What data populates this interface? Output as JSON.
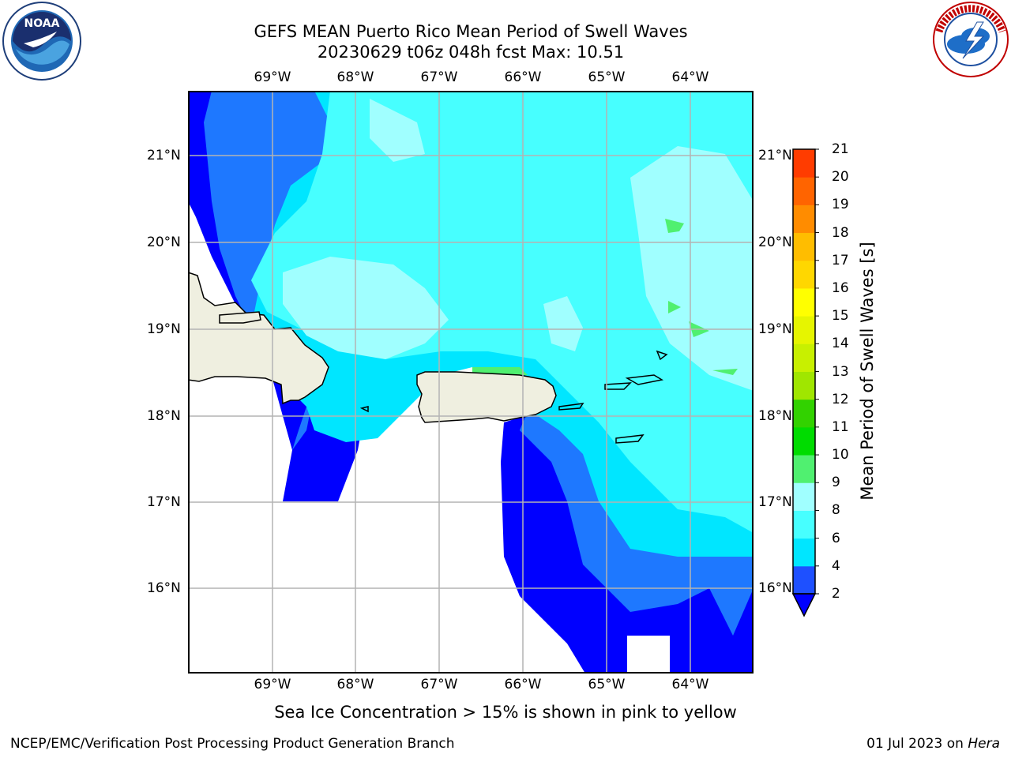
{
  "title_line1": "GEFS MEAN Puerto Rico Mean Period of Swell Waves",
  "title_line2": "20230629 t06z 048h fcst   Max: 10.51",
  "lon_ticks": [
    "69°W",
    "68°W",
    "67°W",
    "66°W",
    "65°W",
    "64°W"
  ],
  "lat_ticks": [
    "21°N",
    "20°N",
    "19°N",
    "18°N",
    "17°N",
    "16°N"
  ],
  "colorbar": {
    "label": "Mean Period of Swell Waves [s]",
    "ticks": [
      "2",
      "4",
      "6",
      "8",
      "9",
      "10",
      "11",
      "12",
      "13",
      "14",
      "15",
      "16",
      "17",
      "18",
      "19",
      "20",
      "21"
    ],
    "colors": [
      "#1e50ff",
      "#00e6ff",
      "#47ffff",
      "#a0ffff",
      "#50f070",
      "#00dc00",
      "#32d200",
      "#a0e600",
      "#c8f000",
      "#e6f500",
      "#ffff00",
      "#ffd700",
      "#ffbd00",
      "#ff8c00",
      "#ff6400",
      "#ff3c00",
      "#ff0000"
    ],
    "underflow_color": "#0000ff"
  },
  "note": "Sea Ice Concentration > 15% is shown in pink to yellow",
  "footer_left": "NCEP/EMC/Verification Post Processing Product Generation Branch",
  "footer_date": "01 Jul 2023 on ",
  "footer_host": "Hera",
  "colors": {
    "land": "#efefe0",
    "grid": "#b4b4b4",
    "very_low": "#0000ff",
    "low": "#1e78ff"
  }
}
